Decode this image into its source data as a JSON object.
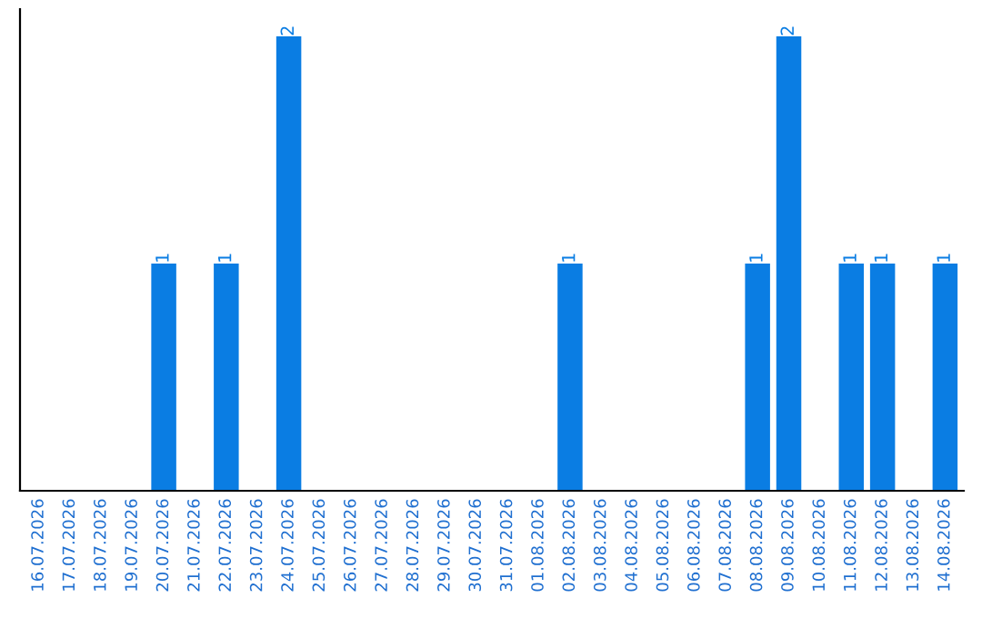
{
  "chart_data": {
    "type": "bar",
    "categories": [
      "16.07.2026",
      "17.07.2026",
      "18.07.2026",
      "19.07.2026",
      "20.07.2026",
      "21.07.2026",
      "22.07.2026",
      "23.07.2026",
      "24.07.2026",
      "25.07.2026",
      "26.07.2026",
      "27.07.2026",
      "28.07.2026",
      "29.07.2026",
      "30.07.2026",
      "31.07.2026",
      "01.08.2026",
      "02.08.2026",
      "03.08.2026",
      "04.08.2026",
      "05.08.2026",
      "06.08.2026",
      "07.08.2026",
      "08.08.2026",
      "09.08.2026",
      "10.08.2026",
      "11.08.2026",
      "12.08.2026",
      "13.08.2026",
      "14.08.2026"
    ],
    "values": [
      0,
      0,
      0,
      0,
      1,
      0,
      1,
      0,
      2,
      0,
      0,
      0,
      0,
      0,
      0,
      0,
      0,
      1,
      0,
      0,
      0,
      0,
      0,
      1,
      2,
      0,
      1,
      1,
      0,
      1
    ],
    "color": "#0a7de3",
    "value_labels": [
      null,
      null,
      null,
      null,
      "1",
      null,
      "1",
      null,
      "2",
      null,
      null,
      null,
      null,
      null,
      null,
      null,
      null,
      "1",
      null,
      null,
      null,
      null,
      null,
      "1",
      "2",
      null,
      "1",
      "1",
      null,
      "1"
    ],
    "tick_labels": "x",
    "grid": false
  }
}
